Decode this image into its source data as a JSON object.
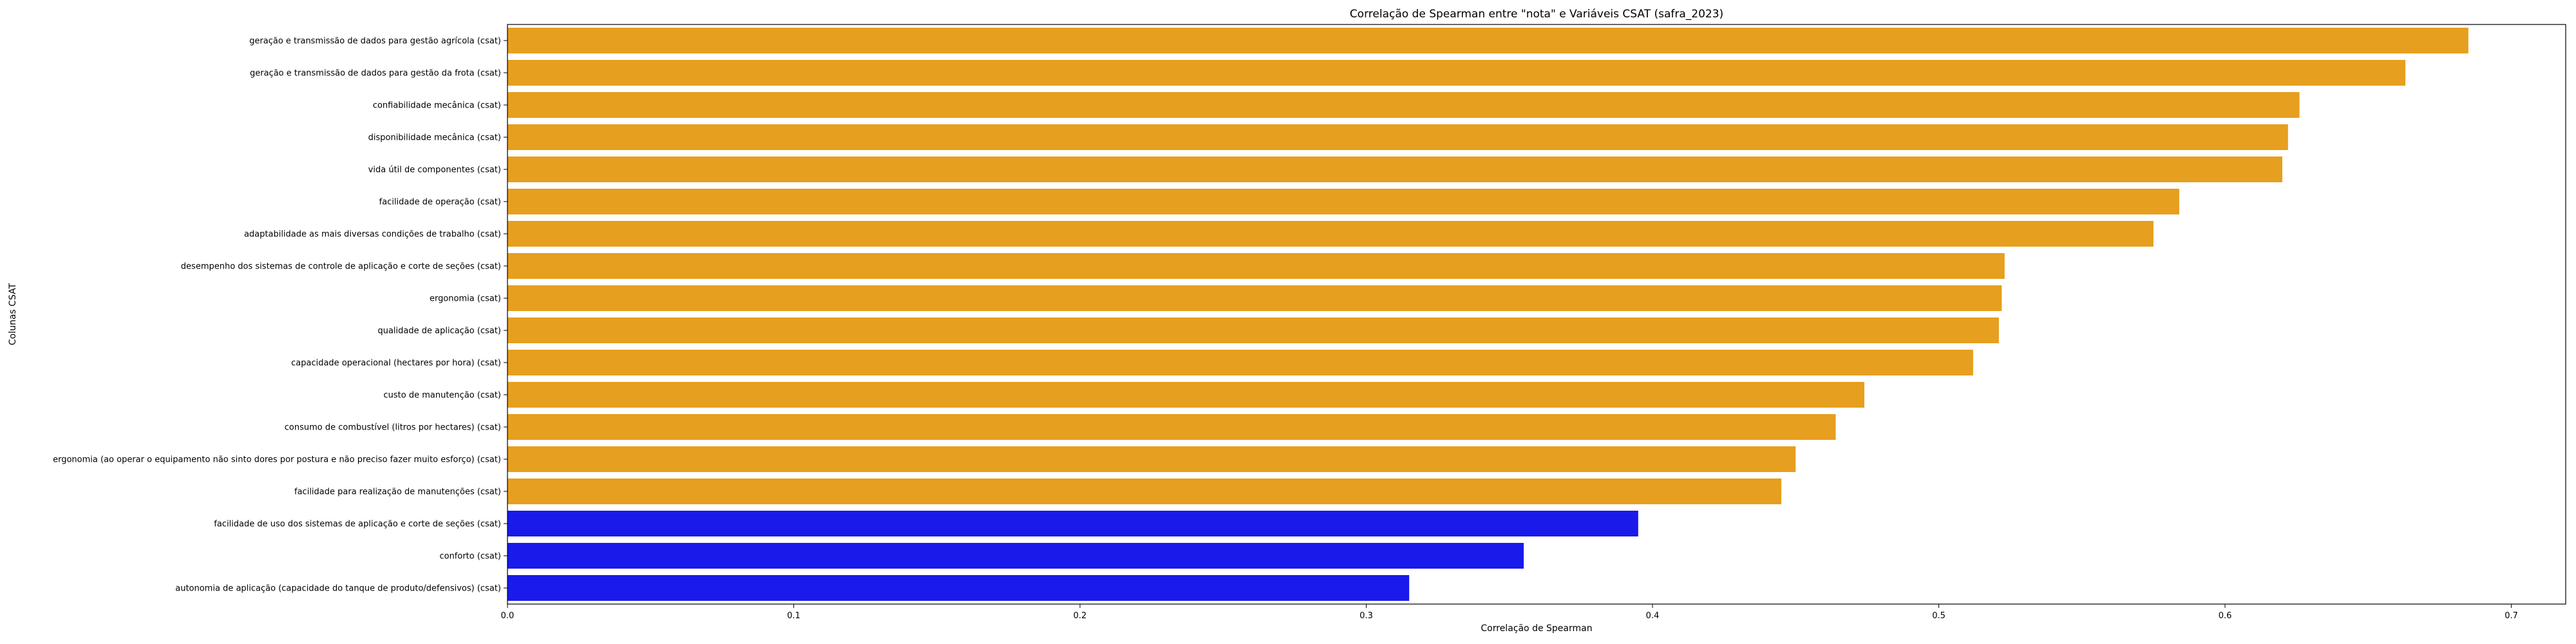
{
  "chart_data": {
    "type": "bar",
    "orientation": "horizontal",
    "title": "Correlação de Spearman entre \"nota\" e Variáveis CSAT (safra_2023)",
    "xlabel": "Correlação de Spearman",
    "ylabel": "Colunas CSAT",
    "xlim": [
      0,
      0.719
    ],
    "xticks": [
      "0.0",
      "0.1",
      "0.2",
      "0.3",
      "0.4",
      "0.5",
      "0.6",
      "0.7"
    ],
    "grid": false,
    "legend": "none",
    "colors": {
      "high": "#e69f1e",
      "low": "#1a1aeb"
    },
    "categories": [
      "geração e transmissão de dados para gestão agrícola (csat)",
      "geração e transmissão de dados para gestão da frota (csat)",
      "confiabilidade mecânica (csat)",
      "disponibilidade mecânica (csat)",
      "vida útil de componentes (csat)",
      "facilidade de operação (csat)",
      "adaptabilidade as mais diversas condições de trabalho (csat)",
      "desempenho dos sistemas de controle de aplicação e corte de seções (csat)",
      "ergonomia (csat)",
      "qualidade de aplicação (csat)",
      "capacidade operacional (hectares por hora) (csat)",
      "custo de manutenção (csat)",
      "consumo de combustível (litros por hectares) (csat)",
      "ergonomia (ao operar o equipamento não sinto dores por postura e não preciso fazer muito esforço) (csat)",
      "facilidade para realização de manutenções (csat)",
      "facilidade de uso dos sistemas de aplicação e corte de seções (csat)",
      "conforto (csat)",
      "autonomia de aplicação (capacidade do tanque de produto/defensivos) (csat)"
    ],
    "values": [
      0.685,
      0.663,
      0.626,
      0.622,
      0.62,
      0.584,
      0.575,
      0.523,
      0.522,
      0.521,
      0.512,
      0.474,
      0.464,
      0.45,
      0.445,
      0.395,
      0.355,
      0.315
    ],
    "bar_colors": [
      "high",
      "high",
      "high",
      "high",
      "high",
      "high",
      "high",
      "high",
      "high",
      "high",
      "high",
      "high",
      "high",
      "high",
      "high",
      "low",
      "low",
      "low"
    ]
  }
}
